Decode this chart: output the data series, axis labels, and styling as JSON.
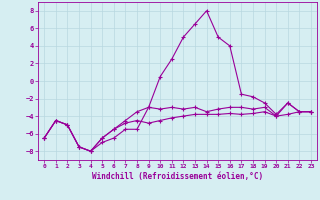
{
  "x": [
    0,
    1,
    2,
    3,
    4,
    5,
    6,
    7,
    8,
    9,
    10,
    11,
    12,
    13,
    14,
    15,
    16,
    17,
    18,
    19,
    20,
    21,
    22,
    23
  ],
  "line1": [
    -6.5,
    -4.5,
    -5.0,
    -7.5,
    -8.0,
    -7.0,
    -6.5,
    -5.5,
    -5.5,
    -3.0,
    0.5,
    2.5,
    5.0,
    6.5,
    8.0,
    5.0,
    4.0,
    -1.5,
    -1.8,
    -2.5,
    -3.8,
    -2.5,
    -3.5,
    -3.5
  ],
  "line2": [
    -6.5,
    -4.5,
    -5.0,
    -7.5,
    -8.0,
    -6.5,
    -5.5,
    -4.5,
    -3.5,
    -3.0,
    -3.2,
    -3.0,
    -3.2,
    -3.0,
    -3.5,
    -3.2,
    -3.0,
    -3.0,
    -3.2,
    -3.0,
    -4.0,
    -2.5,
    -3.5,
    -3.5
  ],
  "line3": [
    -6.5,
    -4.5,
    -5.0,
    -7.5,
    -8.0,
    -6.5,
    -5.5,
    -4.8,
    -4.5,
    -4.8,
    -4.5,
    -4.2,
    -4.0,
    -3.8,
    -3.8,
    -3.8,
    -3.7,
    -3.8,
    -3.7,
    -3.5,
    -4.0,
    -3.8,
    -3.5,
    -3.5
  ],
  "ylim": [
    -9,
    9
  ],
  "xlim": [
    -0.5,
    23.5
  ],
  "yticks": [
    -8,
    -6,
    -4,
    -2,
    0,
    2,
    4,
    6,
    8
  ],
  "xticks": [
    0,
    1,
    2,
    3,
    4,
    5,
    6,
    7,
    8,
    9,
    10,
    11,
    12,
    13,
    14,
    15,
    16,
    17,
    18,
    19,
    20,
    21,
    22,
    23
  ],
  "xlabel": "Windchill (Refroidissement éolien,°C)",
  "line_color": "#990099",
  "bg_color": "#d6eef2",
  "grid_color": "#b8d8e0"
}
